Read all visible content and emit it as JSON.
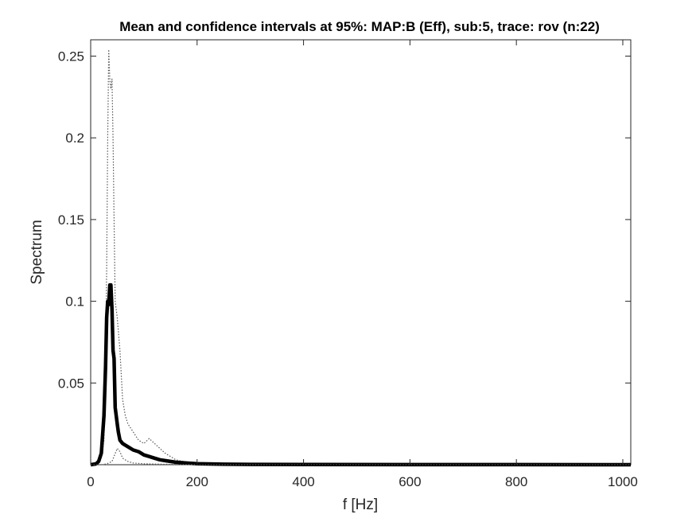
{
  "chart_data": {
    "type": "line",
    "title": "Mean and confidence intervals at 95%: MAP:B (Eff), sub:5, trace: rov (n:22)",
    "xlabel": "f [Hz]",
    "ylabel": "Spectrum",
    "xlim": [
      0,
      1015
    ],
    "ylim": [
      0,
      0.26
    ],
    "x_ticks": [
      "0",
      "200",
      "400",
      "600",
      "800",
      "1000"
    ],
    "y_ticks": [
      "0.05",
      "0.1",
      "0.15",
      "0.2",
      "0.25"
    ],
    "grid": false,
    "legend": "none",
    "series": [
      {
        "role": "upper",
        "style": "dotted",
        "color": "#555555",
        "x": [
          0,
          10,
          15,
          20,
          25,
          28,
          30,
          32,
          34,
          36,
          38,
          40,
          42,
          44,
          46,
          50,
          55,
          60,
          65,
          70,
          80,
          90,
          100,
          110,
          120,
          130,
          140,
          150,
          160,
          180,
          200,
          250,
          300,
          400,
          600,
          800,
          1015
        ],
        "y": [
          0,
          0.0005,
          0.001,
          0.004,
          0.015,
          0.06,
          0.12,
          0.2,
          0.254,
          0.235,
          0.23,
          0.236,
          0.2,
          0.15,
          0.1,
          0.09,
          0.07,
          0.04,
          0.03,
          0.025,
          0.02,
          0.015,
          0.013,
          0.016,
          0.013,
          0.01,
          0.007,
          0.005,
          0.003,
          0.0015,
          0.0008,
          0.0004,
          0.0002,
          0.0001,
          5e-05,
          3e-05,
          2e-05
        ]
      },
      {
        "role": "mean",
        "style": "solid",
        "color": "#000000",
        "x": [
          0,
          10,
          15,
          20,
          25,
          28,
          30,
          32,
          34,
          36,
          38,
          40,
          42,
          44,
          46,
          48,
          50,
          52,
          55,
          60,
          65,
          70,
          80,
          90,
          100,
          110,
          120,
          130,
          140,
          150,
          160,
          180,
          200,
          250,
          300,
          400,
          600,
          800,
          1015
        ],
        "y": [
          0,
          0.0005,
          0.002,
          0.007,
          0.03,
          0.06,
          0.09,
          0.1,
          0.098,
          0.11,
          0.11,
          0.095,
          0.07,
          0.065,
          0.035,
          0.03,
          0.025,
          0.02,
          0.015,
          0.013,
          0.012,
          0.011,
          0.009,
          0.008,
          0.006,
          0.005,
          0.004,
          0.003,
          0.0025,
          0.002,
          0.0015,
          0.001,
          0.0006,
          0.0003,
          0.0002,
          0.0001,
          5e-05,
          3e-05,
          2e-05
        ]
      },
      {
        "role": "lower",
        "style": "dotted",
        "color": "#555555",
        "x": [
          0,
          20,
          30,
          40,
          45,
          50,
          55,
          60,
          70,
          80,
          100,
          120,
          150,
          200,
          300,
          600,
          1015
        ],
        "y": [
          0,
          0,
          0.0005,
          0.002,
          0.006,
          0.01,
          0.008,
          0.004,
          0.002,
          0.001,
          0.0006,
          0.0004,
          0.0002,
          0.0001,
          5e-05,
          2e-05,
          1e-05
        ]
      }
    ]
  }
}
